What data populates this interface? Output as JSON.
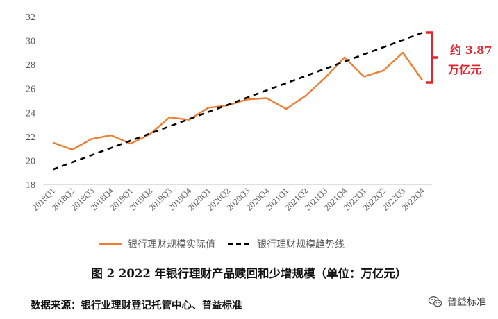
{
  "chart_data": {
    "type": "line",
    "categories": [
      "2018Q1",
      "2018Q2",
      "2018Q3",
      "2018Q4",
      "2019Q1",
      "2019Q2",
      "2019Q3",
      "2019Q4",
      "2020Q1",
      "2020Q2",
      "2020Q3",
      "2020Q4",
      "2021Q1",
      "2021Q2",
      "2021Q3",
      "2021Q4",
      "2022Q1",
      "2022Q2",
      "2022Q3",
      "2022Q4"
    ],
    "series": [
      {
        "name": "银行理财规模实际值",
        "style": "solid",
        "color": "#ed7d31",
        "values": [
          21.5,
          20.9,
          21.8,
          22.1,
          21.4,
          22.2,
          23.6,
          23.4,
          24.4,
          24.6,
          25.1,
          25.2,
          24.3,
          25.4,
          26.9,
          28.6,
          27.0,
          27.5,
          29.0,
          26.7
        ]
      },
      {
        "name": "银行理财规模趋势线",
        "style": "dashed",
        "color": "#000000",
        "values": [
          19.25,
          19.85,
          20.45,
          21.05,
          21.65,
          22.25,
          22.85,
          23.45,
          24.05,
          24.65,
          25.25,
          25.85,
          26.45,
          27.05,
          27.65,
          28.25,
          28.85,
          29.45,
          30.05,
          30.65
        ]
      }
    ],
    "yticks": [
      18,
      20,
      22,
      24,
      26,
      28,
      30,
      32
    ],
    "ylim": [
      18,
      32
    ],
    "legend": "bottom",
    "annotation": {
      "lines": [
        "约 3.87",
        "万亿元"
      ],
      "color": "#e3242b"
    }
  },
  "caption": "图 2 2022 年银行理财产品赎回和少增规模（单位：万亿元）",
  "source": "数据来源：银行业理财登记托管中心、普益标准",
  "watermark": {
    "label": "普益标准",
    "icon": "wechat-icon"
  }
}
